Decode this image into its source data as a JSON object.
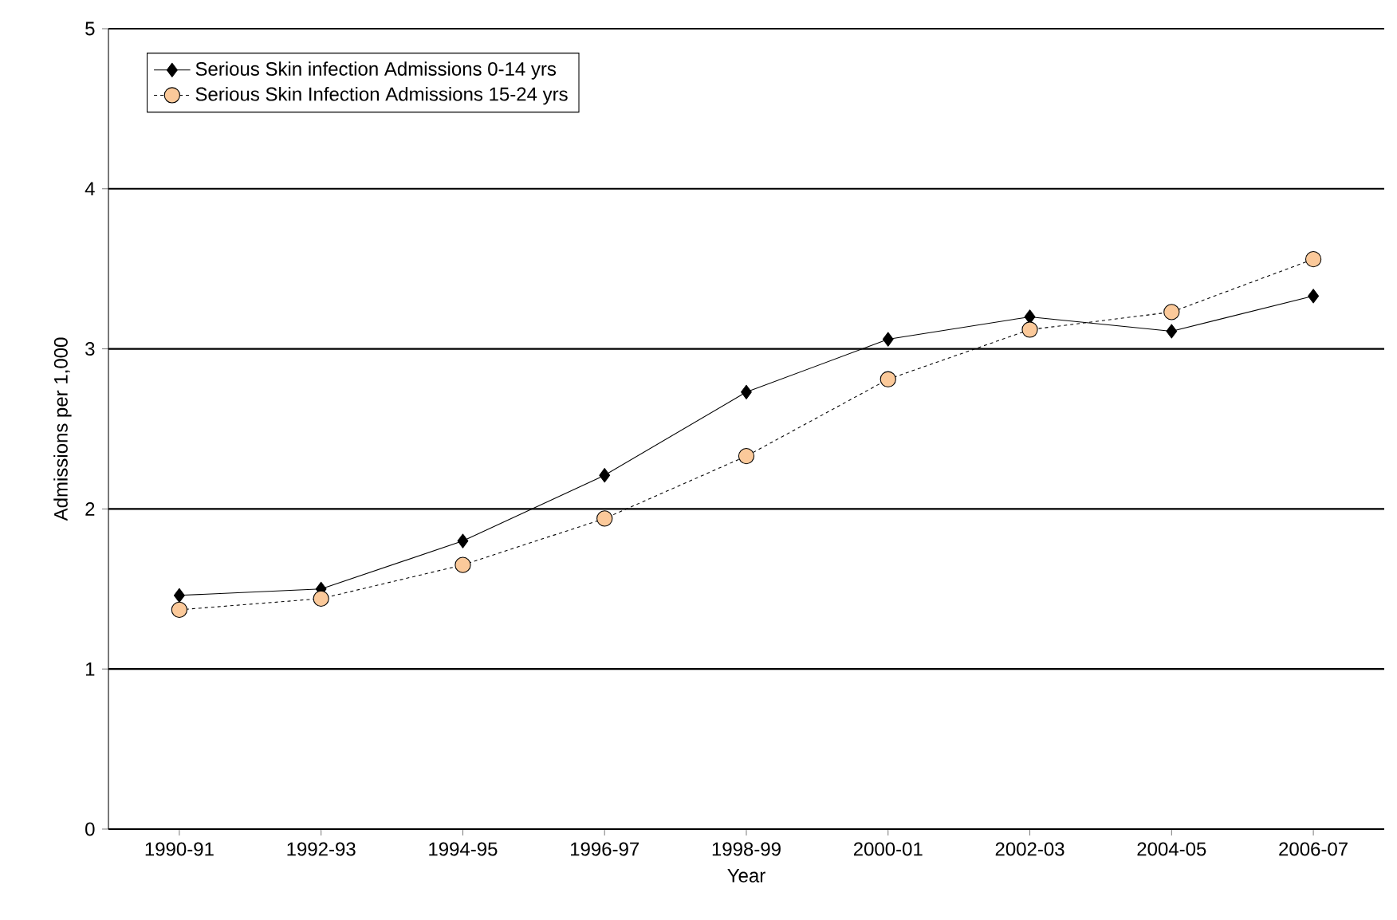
{
  "chart_data": {
    "type": "line",
    "xlabel": "Year",
    "ylabel": "Admissions per 1,000",
    "categories": [
      "1990-91",
      "1992-93",
      "1994-95",
      "1996-97",
      "1998-99",
      "2000-01",
      "2002-03",
      "2004-05",
      "2006-07"
    ],
    "series": [
      {
        "name": "Serious Skin infection Admissions 0-14 yrs",
        "color": "#000000",
        "marker": "diamond",
        "line_style": "solid",
        "values": [
          1.46,
          1.5,
          1.8,
          2.21,
          2.73,
          3.06,
          3.2,
          3.11,
          3.33
        ]
      },
      {
        "name": "Serious Skin Infection Admissions 15-24 yrs",
        "color": "#fbc99a",
        "marker": "circle",
        "line_style": "dotted",
        "values": [
          1.37,
          1.44,
          1.65,
          1.94,
          2.33,
          2.81,
          3.12,
          3.23,
          3.56
        ]
      }
    ],
    "ylim": [
      0,
      5
    ],
    "yticks": [
      0,
      1,
      2,
      3,
      4,
      5
    ],
    "grid": "y",
    "legend": "top left"
  }
}
